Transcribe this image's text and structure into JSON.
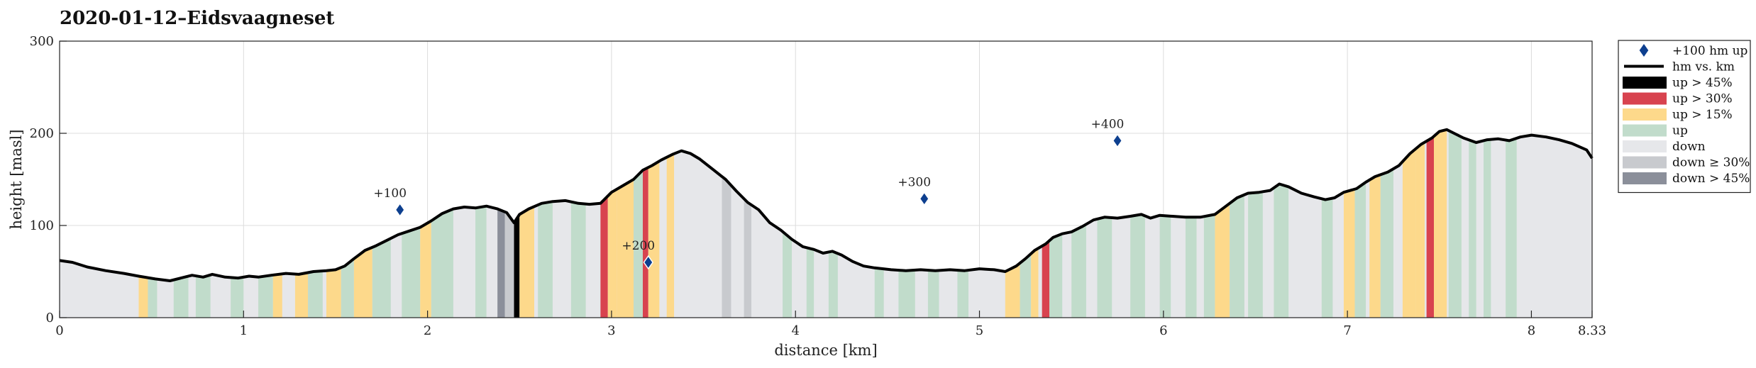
{
  "chart_data": {
    "type": "area",
    "title": "2020-01-12–Eidsvaagneset",
    "xlabel": "distance [km]",
    "ylabel": "height [masl]",
    "xlim": [
      0,
      8.33
    ],
    "ylim": [
      0,
      300
    ],
    "xticks": [
      0,
      1,
      2,
      3,
      4,
      5,
      6,
      7,
      8,
      8.33
    ],
    "xtick_labels": [
      "0",
      "1",
      "2",
      "3",
      "4",
      "5",
      "6",
      "7",
      "8",
      "8.33"
    ],
    "yticks": [
      0,
      100,
      200,
      300
    ],
    "ytick_labels": [
      "0",
      "100",
      "200",
      "300"
    ],
    "grid": true,
    "legend_position": "outside-right-top",
    "legend": [
      {
        "key": "marker",
        "label": "+100 hm up",
        "color": "#0d3f8f"
      },
      {
        "key": "line",
        "label": "hm vs. km",
        "color": "#000000"
      },
      {
        "key": "up45",
        "label": "up > 45%",
        "color": "#000000"
      },
      {
        "key": "up30",
        "label": "up > 30%",
        "color": "#d8434f"
      },
      {
        "key": "up15",
        "label": "up > 15%",
        "color": "#fdd98b"
      },
      {
        "key": "up",
        "label": "up",
        "color": "#c1dccb"
      },
      {
        "key": "down",
        "label": "down",
        "color": "#e6e7ea"
      },
      {
        "key": "down30",
        "label": "down ≥ 30%",
        "color": "#c8cace"
      },
      {
        "key": "down45",
        "label": "down > 45%",
        "color": "#8b8f9a"
      }
    ],
    "profile": [
      [
        0,
        62
      ],
      [
        0.07,
        60
      ],
      [
        0.15,
        55
      ],
      [
        0.25,
        51
      ],
      [
        0.35,
        48
      ],
      [
        0.43,
        45
      ],
      [
        0.52,
        42
      ],
      [
        0.6,
        40
      ],
      [
        0.66,
        43
      ],
      [
        0.72,
        46
      ],
      [
        0.78,
        44
      ],
      [
        0.83,
        47
      ],
      [
        0.9,
        44
      ],
      [
        0.97,
        43
      ],
      [
        1.03,
        45
      ],
      [
        1.08,
        44
      ],
      [
        1.15,
        46
      ],
      [
        1.23,
        48
      ],
      [
        1.3,
        47
      ],
      [
        1.38,
        50
      ],
      [
        1.45,
        51
      ],
      [
        1.5,
        52
      ],
      [
        1.55,
        56
      ],
      [
        1.6,
        64
      ],
      [
        1.66,
        73
      ],
      [
        1.72,
        78
      ],
      [
        1.78,
        84
      ],
      [
        1.84,
        90
      ],
      [
        1.9,
        94
      ],
      [
        1.96,
        98
      ],
      [
        2.02,
        105
      ],
      [
        2.08,
        113
      ],
      [
        2.14,
        118
      ],
      [
        2.2,
        120
      ],
      [
        2.26,
        119
      ],
      [
        2.32,
        121
      ],
      [
        2.38,
        118
      ],
      [
        2.43,
        114
      ],
      [
        2.47,
        103
      ],
      [
        2.5,
        112
      ],
      [
        2.55,
        118
      ],
      [
        2.62,
        124
      ],
      [
        2.68,
        126
      ],
      [
        2.75,
        127
      ],
      [
        2.82,
        124
      ],
      [
        2.88,
        123
      ],
      [
        2.94,
        124
      ],
      [
        3.0,
        136
      ],
      [
        3.06,
        143
      ],
      [
        3.12,
        150
      ],
      [
        3.17,
        160
      ],
      [
        3.22,
        165
      ],
      [
        3.27,
        171
      ],
      [
        3.33,
        177
      ],
      [
        3.38,
        181
      ],
      [
        3.43,
        178
      ],
      [
        3.48,
        172
      ],
      [
        3.55,
        161
      ],
      [
        3.62,
        150
      ],
      [
        3.68,
        137
      ],
      [
        3.74,
        125
      ],
      [
        3.8,
        117
      ],
      [
        3.86,
        103
      ],
      [
        3.92,
        95
      ],
      [
        3.98,
        85
      ],
      [
        4.04,
        77
      ],
      [
        4.1,
        74
      ],
      [
        4.15,
        70
      ],
      [
        4.2,
        72
      ],
      [
        4.25,
        68
      ],
      [
        4.31,
        61
      ],
      [
        4.37,
        56
      ],
      [
        4.43,
        54
      ],
      [
        4.52,
        52
      ],
      [
        4.6,
        51
      ],
      [
        4.68,
        52
      ],
      [
        4.76,
        51
      ],
      [
        4.84,
        52
      ],
      [
        4.92,
        51
      ],
      [
        5.0,
        53
      ],
      [
        5.08,
        52
      ],
      [
        5.14,
        50
      ],
      [
        5.2,
        56
      ],
      [
        5.25,
        64
      ],
      [
        5.3,
        73
      ],
      [
        5.36,
        80
      ],
      [
        5.4,
        87
      ],
      [
        5.45,
        91
      ],
      [
        5.5,
        93
      ],
      [
        5.56,
        99
      ],
      [
        5.62,
        106
      ],
      [
        5.68,
        109
      ],
      [
        5.75,
        108
      ],
      [
        5.82,
        110
      ],
      [
        5.88,
        112
      ],
      [
        5.93,
        108
      ],
      [
        5.98,
        111
      ],
      [
        6.05,
        110
      ],
      [
        6.12,
        109
      ],
      [
        6.2,
        109
      ],
      [
        6.28,
        112
      ],
      [
        6.34,
        121
      ],
      [
        6.4,
        130
      ],
      [
        6.46,
        135
      ],
      [
        6.52,
        136
      ],
      [
        6.58,
        138
      ],
      [
        6.63,
        145
      ],
      [
        6.68,
        142
      ],
      [
        6.75,
        135
      ],
      [
        6.82,
        131
      ],
      [
        6.88,
        128
      ],
      [
        6.93,
        130
      ],
      [
        6.98,
        136
      ],
      [
        7.05,
        140
      ],
      [
        7.1,
        147
      ],
      [
        7.15,
        153
      ],
      [
        7.22,
        158
      ],
      [
        7.28,
        165
      ],
      [
        7.34,
        178
      ],
      [
        7.4,
        188
      ],
      [
        7.46,
        195
      ],
      [
        7.5,
        202
      ],
      [
        7.54,
        204
      ],
      [
        7.58,
        200
      ],
      [
        7.63,
        195
      ],
      [
        7.7,
        190
      ],
      [
        7.76,
        193
      ],
      [
        7.82,
        194
      ],
      [
        7.88,
        192
      ],
      [
        7.94,
        196
      ],
      [
        8.0,
        198
      ],
      [
        8.08,
        196
      ],
      [
        8.15,
        193
      ],
      [
        8.22,
        189
      ],
      [
        8.3,
        182
      ],
      [
        8.33,
        173
      ]
    ],
    "bands": [
      {
        "x0": 0.43,
        "x1": 0.48,
        "type": "up15"
      },
      {
        "x0": 0.48,
        "x1": 0.53,
        "type": "up"
      },
      {
        "x0": 0.62,
        "x1": 0.7,
        "type": "up"
      },
      {
        "x0": 0.74,
        "x1": 0.82,
        "type": "up"
      },
      {
        "x0": 0.93,
        "x1": 1.0,
        "type": "up"
      },
      {
        "x0": 1.08,
        "x1": 1.16,
        "type": "up"
      },
      {
        "x0": 1.16,
        "x1": 1.21,
        "type": "up15"
      },
      {
        "x0": 1.28,
        "x1": 1.35,
        "type": "up15"
      },
      {
        "x0": 1.35,
        "x1": 1.43,
        "type": "up"
      },
      {
        "x0": 1.45,
        "x1": 1.53,
        "type": "up15"
      },
      {
        "x0": 1.53,
        "x1": 1.6,
        "type": "up"
      },
      {
        "x0": 1.6,
        "x1": 1.7,
        "type": "up15"
      },
      {
        "x0": 1.7,
        "x1": 1.8,
        "type": "up"
      },
      {
        "x0": 1.86,
        "x1": 1.96,
        "type": "up"
      },
      {
        "x0": 1.96,
        "x1": 2.02,
        "type": "up15"
      },
      {
        "x0": 2.02,
        "x1": 2.14,
        "type": "up"
      },
      {
        "x0": 2.26,
        "x1": 2.32,
        "type": "up"
      },
      {
        "x0": 2.38,
        "x1": 2.42,
        "type": "down45"
      },
      {
        "x0": 2.42,
        "x1": 2.47,
        "type": "down30"
      },
      {
        "x0": 2.47,
        "x1": 2.5,
        "type": "up45"
      },
      {
        "x0": 2.5,
        "x1": 2.58,
        "type": "up15"
      },
      {
        "x0": 2.6,
        "x1": 2.68,
        "type": "up"
      },
      {
        "x0": 2.78,
        "x1": 2.86,
        "type": "up"
      },
      {
        "x0": 2.94,
        "x1": 2.98,
        "type": "up30"
      },
      {
        "x0": 2.98,
        "x1": 3.03,
        "type": "up15"
      },
      {
        "x0": 3.03,
        "x1": 3.12,
        "type": "up15"
      },
      {
        "x0": 3.12,
        "x1": 3.17,
        "type": "up"
      },
      {
        "x0": 3.17,
        "x1": 3.2,
        "type": "up30"
      },
      {
        "x0": 3.2,
        "x1": 3.26,
        "type": "up15"
      },
      {
        "x0": 3.3,
        "x1": 3.34,
        "type": "up15"
      },
      {
        "x0": 3.6,
        "x1": 3.65,
        "type": "down30"
      },
      {
        "x0": 3.72,
        "x1": 3.76,
        "type": "down30"
      },
      {
        "x0": 3.93,
        "x1": 3.98,
        "type": "up"
      },
      {
        "x0": 4.06,
        "x1": 4.1,
        "type": "up"
      },
      {
        "x0": 4.18,
        "x1": 4.23,
        "type": "up"
      },
      {
        "x0": 4.43,
        "x1": 4.48,
        "type": "up"
      },
      {
        "x0": 4.56,
        "x1": 4.65,
        "type": "up"
      },
      {
        "x0": 4.72,
        "x1": 4.78,
        "type": "up"
      },
      {
        "x0": 4.88,
        "x1": 4.94,
        "type": "up"
      },
      {
        "x0": 5.14,
        "x1": 5.22,
        "type": "up15"
      },
      {
        "x0": 5.22,
        "x1": 5.28,
        "type": "up"
      },
      {
        "x0": 5.28,
        "x1": 5.32,
        "type": "up15"
      },
      {
        "x0": 5.34,
        "x1": 5.38,
        "type": "up30"
      },
      {
        "x0": 5.38,
        "x1": 5.45,
        "type": "up"
      },
      {
        "x0": 5.5,
        "x1": 5.58,
        "type": "up"
      },
      {
        "x0": 5.64,
        "x1": 5.72,
        "type": "up"
      },
      {
        "x0": 5.82,
        "x1": 5.9,
        "type": "up"
      },
      {
        "x0": 5.98,
        "x1": 6.04,
        "type": "up"
      },
      {
        "x0": 6.12,
        "x1": 6.18,
        "type": "up"
      },
      {
        "x0": 6.22,
        "x1": 6.28,
        "type": "up"
      },
      {
        "x0": 6.28,
        "x1": 6.36,
        "type": "up15"
      },
      {
        "x0": 6.36,
        "x1": 6.44,
        "type": "up"
      },
      {
        "x0": 6.46,
        "x1": 6.54,
        "type": "up"
      },
      {
        "x0": 6.6,
        "x1": 6.68,
        "type": "up"
      },
      {
        "x0": 6.86,
        "x1": 6.92,
        "type": "up"
      },
      {
        "x0": 6.98,
        "x1": 7.04,
        "type": "up15"
      },
      {
        "x0": 7.04,
        "x1": 7.1,
        "type": "up"
      },
      {
        "x0": 7.12,
        "x1": 7.18,
        "type": "up15"
      },
      {
        "x0": 7.18,
        "x1": 7.25,
        "type": "up"
      },
      {
        "x0": 7.3,
        "x1": 7.37,
        "type": "up15"
      },
      {
        "x0": 7.37,
        "x1": 7.42,
        "type": "up15"
      },
      {
        "x0": 7.43,
        "x1": 7.47,
        "type": "up30"
      },
      {
        "x0": 7.47,
        "x1": 7.54,
        "type": "up15"
      },
      {
        "x0": 7.55,
        "x1": 7.62,
        "type": "up"
      },
      {
        "x0": 7.66,
        "x1": 7.7,
        "type": "up"
      },
      {
        "x0": 7.74,
        "x1": 7.78,
        "type": "up"
      },
      {
        "x0": 7.86,
        "x1": 7.92,
        "type": "up"
      }
    ],
    "markers": [
      {
        "x": 1.85,
        "y": 117,
        "label": "+100"
      },
      {
        "x": 3.2,
        "y": 60,
        "label": "+200"
      },
      {
        "x": 4.7,
        "y": 129,
        "label": "+300"
      },
      {
        "x": 5.75,
        "y": 192,
        "label": "+400"
      }
    ]
  }
}
